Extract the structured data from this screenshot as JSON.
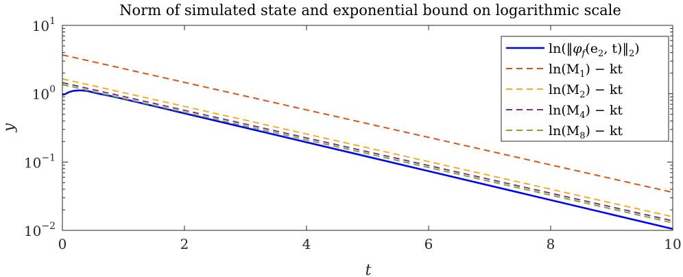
{
  "chart_data": {
    "type": "line",
    "title": "Norm of simulated state and exponential bound on logarithmic scale",
    "xlabel": "t",
    "ylabel": "y",
    "xlim": [
      0,
      10
    ],
    "ylim": [
      0.01,
      10
    ],
    "yscale": "log",
    "grid": false,
    "legend_position": "top-right",
    "x_ticks": [
      0,
      2,
      4,
      6,
      8,
      10
    ],
    "x_tick_labels": [
      "0",
      "2",
      "4",
      "6",
      "8",
      "10"
    ],
    "y_ticks": [
      0.01,
      0.1,
      1,
      10
    ],
    "y_tick_labels": [
      {
        "base": "10",
        "exp": "−2"
      },
      {
        "base": "10",
        "exp": "−1"
      },
      {
        "base": "10",
        "exp": "0"
      },
      {
        "base": "10",
        "exp": "1"
      }
    ],
    "series": [
      {
        "name": "ln(‖φf(e2,t)‖2)",
        "legend": {
          "pre": "ln(‖",
          "sym": "φ",
          "sub": "f",
          "mid": "(e",
          "sub2": "2",
          "post": ", t)‖",
          "sub3": "2",
          "end": ")"
        },
        "color": "#0000ff",
        "style": "solid",
        "points": [
          [
            0,
            0.96
          ],
          [
            0.05,
            0.99
          ],
          [
            0.1,
            1.05
          ],
          [
            0.18,
            1.1
          ],
          [
            0.28,
            1.12
          ],
          [
            0.4,
            1.1
          ],
          [
            0.6,
            1.0
          ],
          [
            0.8,
            0.92
          ],
          [
            1.0,
            0.84
          ],
          [
            10,
            0.0105
          ]
        ]
      },
      {
        "name": "ln(M1) − kt",
        "legend": {
          "pre": "ln(M",
          "sub": "1",
          "post": ") − kt"
        },
        "color": "#d95319",
        "style": "dashed",
        "points": [
          [
            0,
            3.7
          ],
          [
            10,
            0.036
          ]
        ]
      },
      {
        "name": "ln(M2) − kt",
        "legend": {
          "pre": "ln(M",
          "sub": "2",
          "post": ") − kt"
        },
        "color": "#edb120",
        "style": "dashed",
        "points": [
          [
            0,
            1.65
          ],
          [
            10,
            0.0158
          ]
        ]
      },
      {
        "name": "ln(M4) − kt",
        "legend": {
          "pre": "ln(M",
          "sub": "4",
          "post": ") − kt"
        },
        "color": "#7e2f8e",
        "style": "dashed",
        "points": [
          [
            0,
            1.45
          ],
          [
            10,
            0.0138
          ]
        ]
      },
      {
        "name": "ln(M8) − kt",
        "legend": {
          "pre": "ln(M",
          "sub": "8",
          "post": ") − kt"
        },
        "color": "#77ac30",
        "style": "dashed",
        "points": [
          [
            0,
            1.36
          ],
          [
            10,
            0.0129
          ]
        ]
      }
    ]
  }
}
